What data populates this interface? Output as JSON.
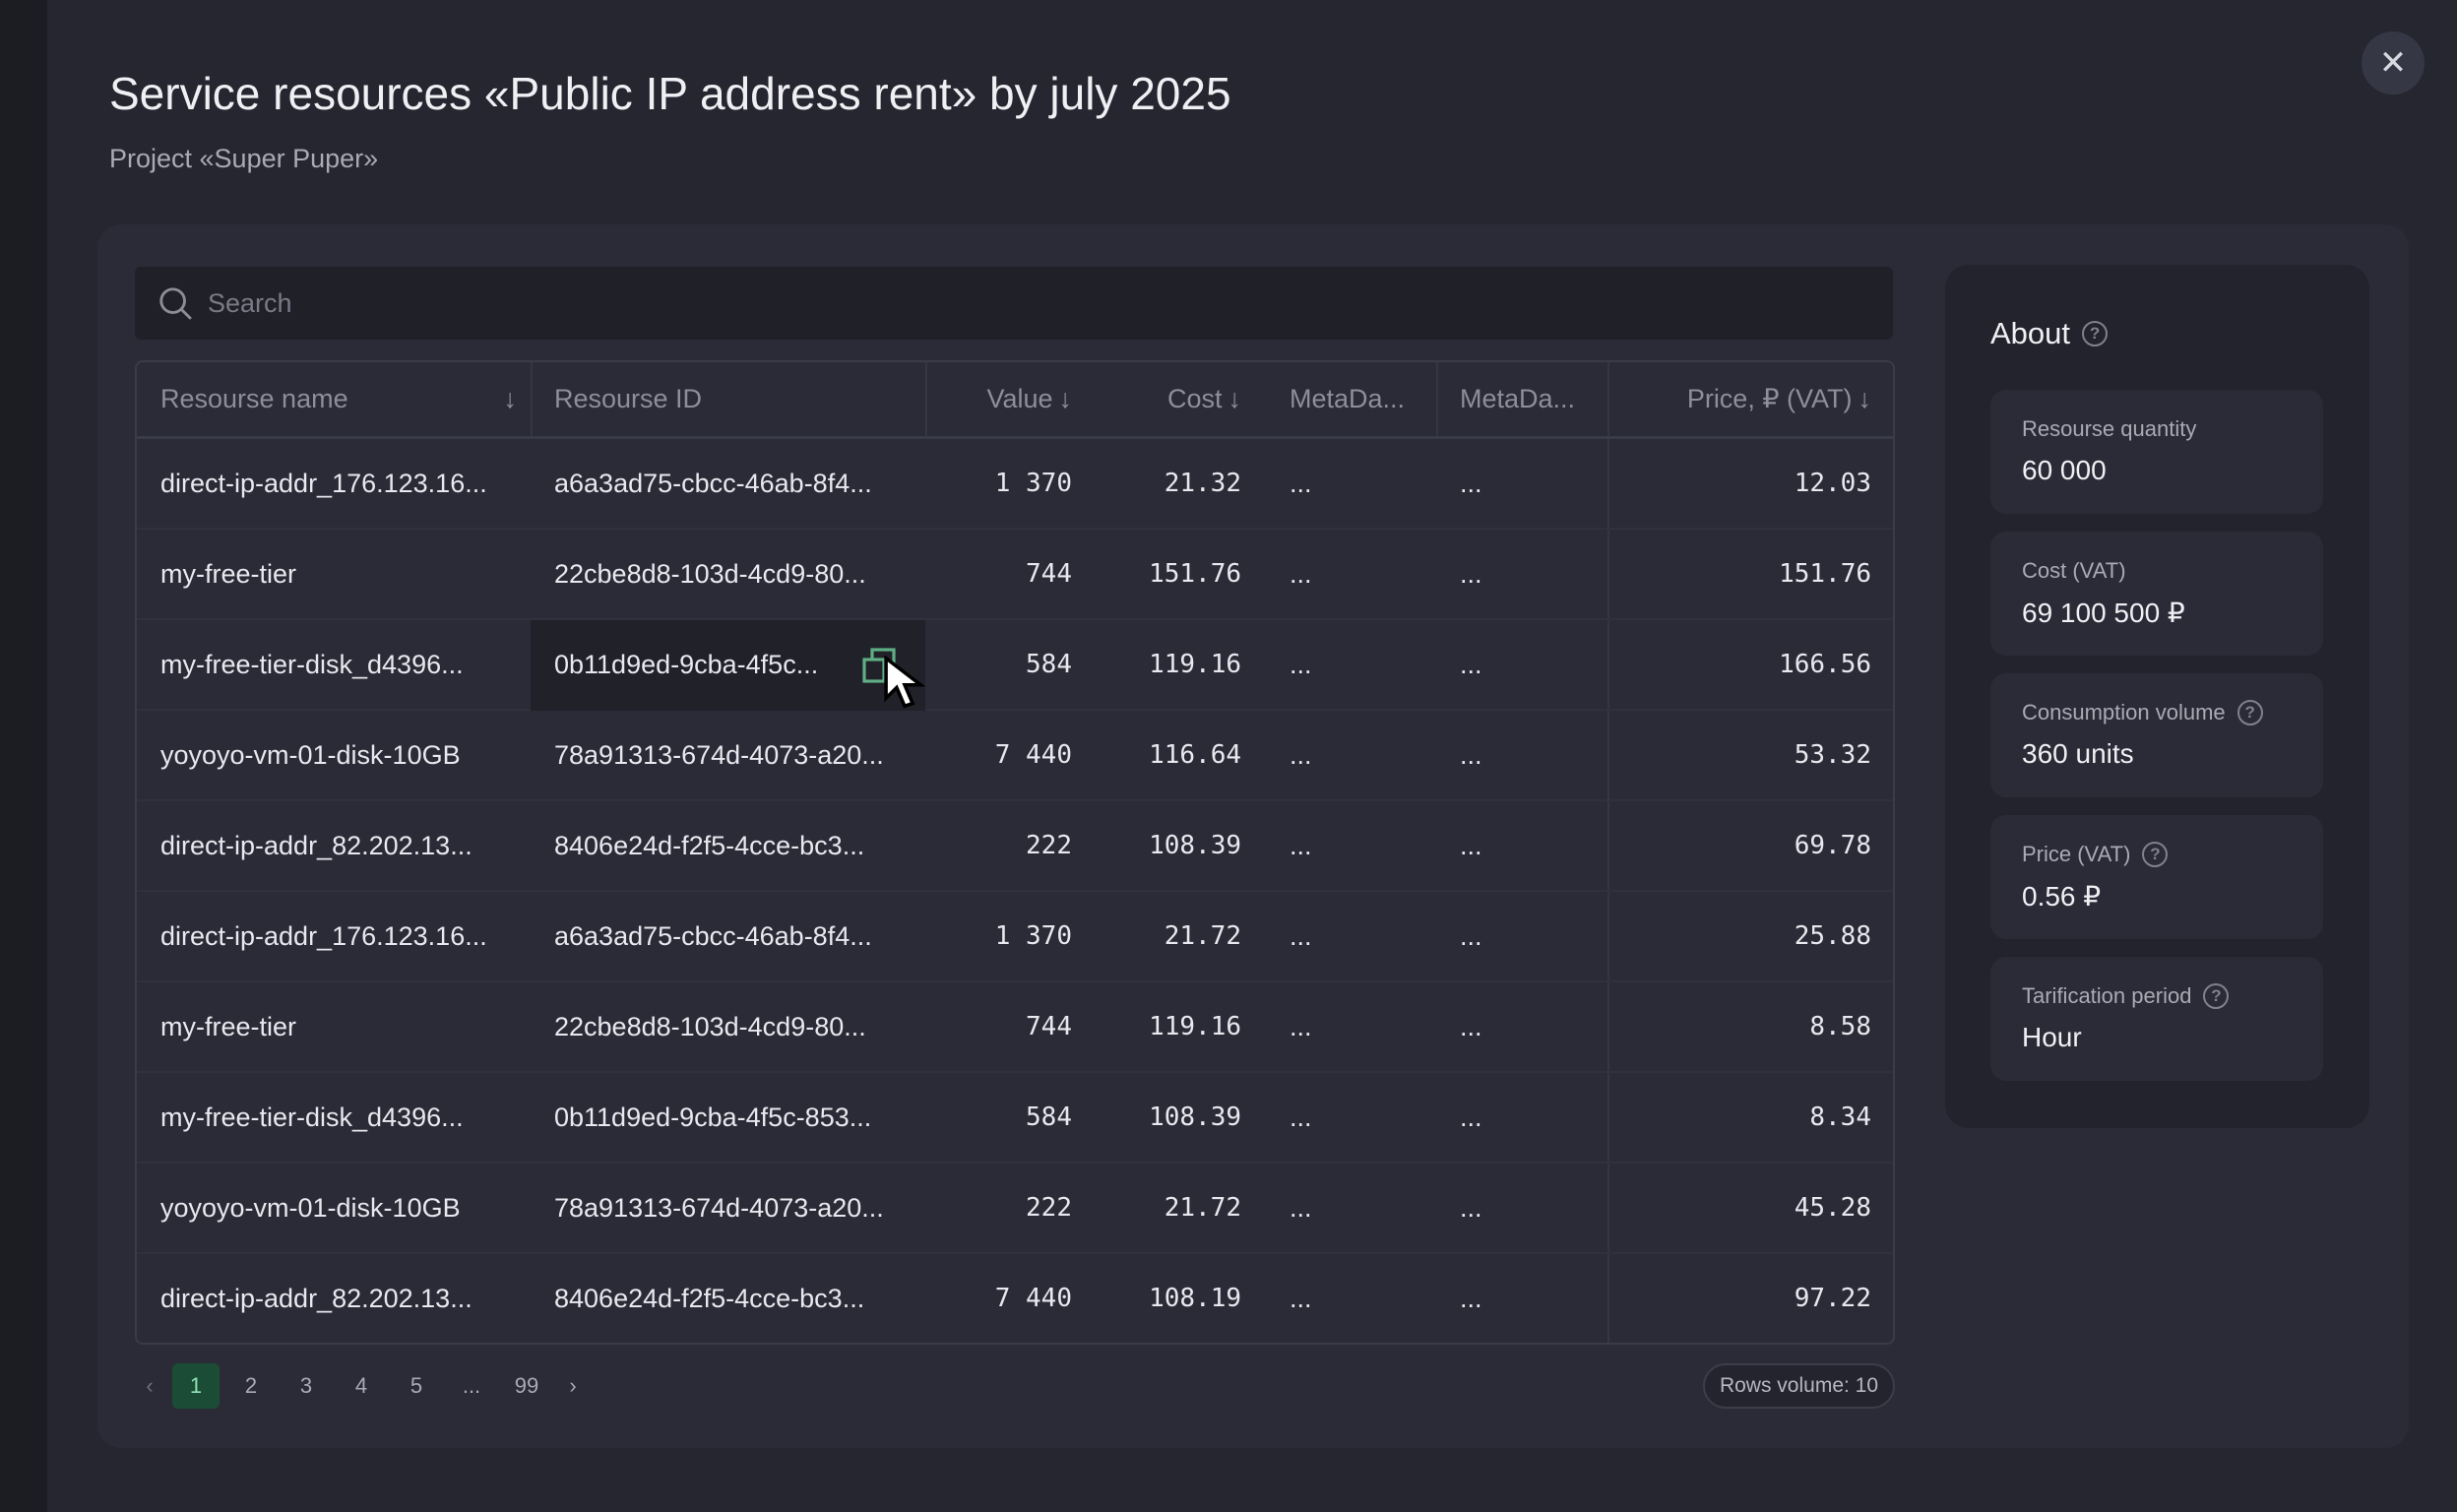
{
  "header": {
    "title": "Service resources «Public IP address rent» by july 2025",
    "subtitle": "Project «Super Puper»",
    "close_icon": "close-icon"
  },
  "search": {
    "placeholder": "Search",
    "value": ""
  },
  "table": {
    "columns": [
      "Resourse name",
      "Resourse ID",
      "Value",
      "Cost",
      "MetaDa...",
      "MetaDa...",
      "Price, ₽ (VAT)"
    ],
    "sortable": [
      true,
      false,
      true,
      true,
      false,
      false,
      true
    ],
    "rows": [
      [
        "direct-ip-addr_176.123.16...",
        "a6a3ad75-cbcc-46ab-8f4...",
        "1 370",
        "21.32",
        "...",
        "...",
        "12.03"
      ],
      [
        "my-free-tier",
        "22cbe8d8-103d-4cd9-80...",
        "744",
        "151.76",
        "...",
        "...",
        "151.76"
      ],
      [
        "my-free-tier-disk_d4396...",
        "0b11d9ed-9cba-4f5c...",
        "584",
        "119.16",
        "...",
        "...",
        "166.56"
      ],
      [
        "yoyoyo-vm-01-disk-10GB",
        "78a91313-674d-4073-a20...",
        "7 440",
        "116.64",
        "...",
        "...",
        "53.32"
      ],
      [
        "direct-ip-addr_82.202.13...",
        "8406e24d-f2f5-4cce-bc3...",
        "222",
        "108.39",
        "...",
        "...",
        "69.78"
      ],
      [
        "direct-ip-addr_176.123.16...",
        "a6a3ad75-cbcc-46ab-8f4...",
        "1 370",
        "21.72",
        "...",
        "...",
        "25.88"
      ],
      [
        "my-free-tier",
        "22cbe8d8-103d-4cd9-80...",
        "744",
        "119.16",
        "...",
        "...",
        "8.58"
      ],
      [
        "my-free-tier-disk_d4396...",
        "0b11d9ed-9cba-4f5c-853...",
        "584",
        "108.39",
        "...",
        "...",
        "8.34"
      ],
      [
        "yoyoyo-vm-01-disk-10GB",
        "78a91313-674d-4073-a20...",
        "222",
        "21.72",
        "...",
        "...",
        "45.28"
      ],
      [
        "direct-ip-addr_82.202.13...",
        "8406e24d-f2f5-4cce-bc3...",
        "7 440",
        "108.19",
        "...",
        "...",
        "97.22"
      ]
    ]
  },
  "pagination": {
    "pages": [
      "1",
      "2",
      "3",
      "4",
      "5",
      "...",
      "99"
    ],
    "current": "1",
    "rows_volume": "Rows volume: 10"
  },
  "about": {
    "title": "About",
    "cards": [
      {
        "label": "Resourse quantity",
        "value": "60 000",
        "help": false
      },
      {
        "label": "Cost (VAT)",
        "value": "69 100 500 ₽",
        "help": false
      },
      {
        "label": "Consumption volume",
        "value": "360 units",
        "help": true
      },
      {
        "label": "Price (VAT)",
        "value": "0.56 ₽",
        "help": true
      },
      {
        "label": "Tarification period",
        "value": "Hour",
        "help": true
      }
    ]
  },
  "colors": {
    "accent": "#1b4d36",
    "accent_text": "#8fe0b4",
    "copy_icon": "#5fae85"
  }
}
